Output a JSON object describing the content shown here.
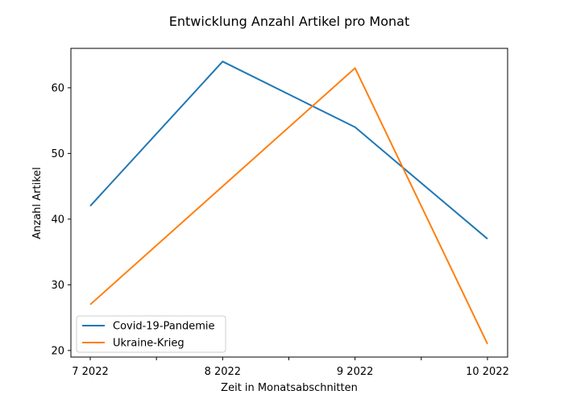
{
  "chart_data": {
    "type": "line",
    "title": "Entwicklung Anzahl Artikel pro Monat",
    "xlabel": "Zeit in Monatsabschnitten",
    "ylabel": "Anzahl Artikel",
    "x_ticks": [
      "7 2022",
      "",
      "8 2022",
      "",
      "9 2022",
      "",
      "10 2022"
    ],
    "categories": [
      "7 2022",
      "8 2022",
      "9 2022",
      "10 2022"
    ],
    "y_ticks": [
      20,
      30,
      40,
      50,
      60
    ],
    "ylim": [
      19,
      66
    ],
    "grid": false,
    "legend_position": "lower-left",
    "series": [
      {
        "name": "Covid-19-Pandemie",
        "values": [
          42,
          64,
          54,
          37
        ],
        "color": "#1f77b4"
      },
      {
        "name": "Ukraine-Krieg",
        "values": [
          27,
          45,
          63,
          21
        ],
        "color": "#ff7f0e"
      }
    ]
  }
}
